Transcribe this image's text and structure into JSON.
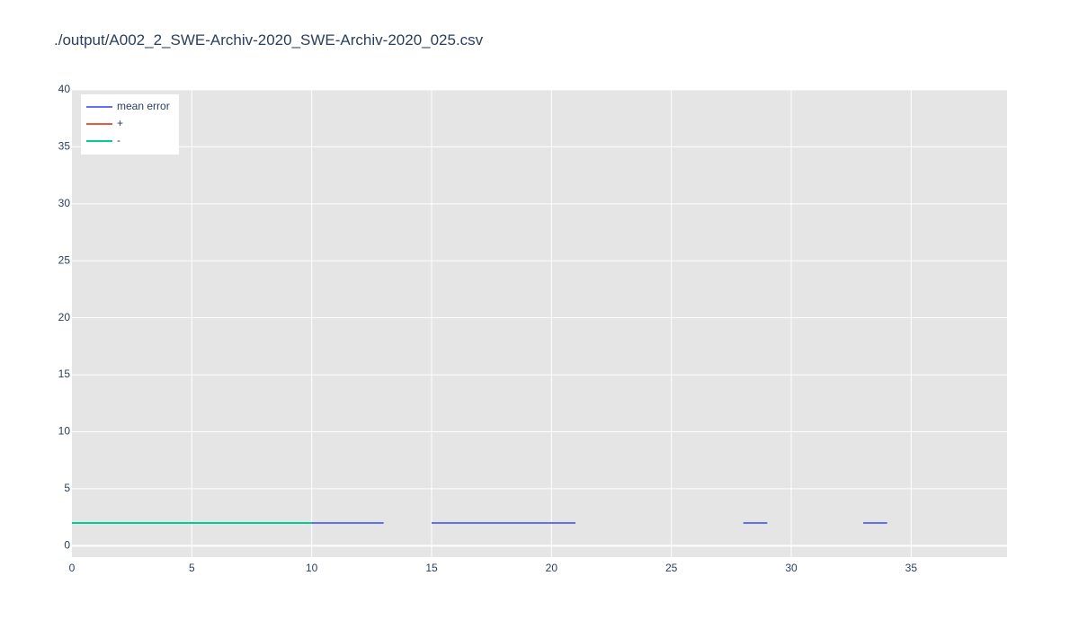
{
  "chart_data": {
    "type": "line",
    "title": "./output/A002_2_SWE-Archiv-2020_SWE-Archiv-2020_025.csv",
    "xlabel": "",
    "ylabel": "",
    "xlim": [
      0,
      39
    ],
    "ylim": [
      -1,
      40
    ],
    "x_ticks": [
      0,
      5,
      10,
      15,
      20,
      25,
      30,
      35
    ],
    "y_ticks": [
      0,
      5,
      10,
      15,
      20,
      25,
      30,
      35,
      40
    ],
    "grid": true,
    "legend_position": "top-left",
    "series": [
      {
        "name": "mean error",
        "color": "#636efa",
        "segments": [
          [
            [
              0,
              2
            ],
            [
              13,
              2
            ]
          ],
          [
            [
              15,
              2
            ],
            [
              21,
              2
            ]
          ],
          [
            [
              28,
              2
            ],
            [
              29,
              2
            ]
          ],
          [
            [
              33,
              2
            ],
            [
              34,
              2
            ]
          ]
        ]
      },
      {
        "name": "+",
        "color": "#ef553b",
        "segments": [
          [
            [
              0,
              2
            ],
            [
              10,
              2
            ]
          ]
        ]
      },
      {
        "name": "-",
        "color": "#00cc96",
        "segments": [
          [
            [
              0,
              2
            ],
            [
              10,
              2
            ]
          ]
        ]
      }
    ]
  }
}
